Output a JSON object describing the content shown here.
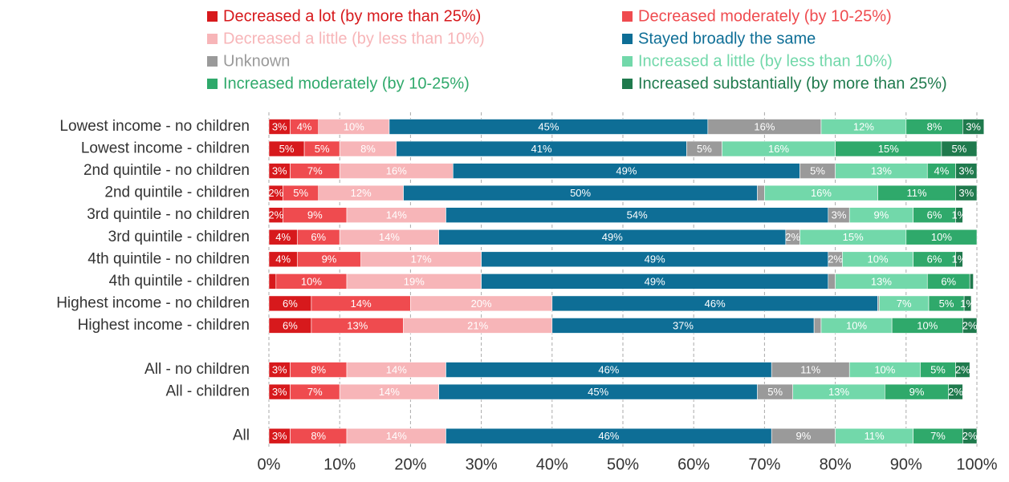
{
  "chart_data": {
    "type": "stacked-bar-horizontal",
    "categories": [
      "Lowest income - no children",
      "Lowest income - children",
      "2nd quintile - no children",
      "2nd quintile - children",
      "3rd quintile - no children",
      "3rd quintile - children",
      "4th quintile - no children",
      "4th quintile - children",
      "Highest income - no children",
      "Highest income - children",
      null,
      "All - no children",
      "All - children",
      null,
      "All"
    ],
    "series": [
      {
        "name": "Decreased a lot (by more than 25%)",
        "color": "#d7191c",
        "values": [
          3,
          5,
          3,
          2,
          2,
          4,
          4,
          1,
          6,
          6,
          null,
          3,
          3,
          null,
          3
        ],
        "value_labels": [
          "3%",
          "5%",
          "3%",
          "2%",
          "2%",
          "4%",
          "4%",
          null,
          "6%",
          "6%",
          null,
          "3%",
          "3%",
          null,
          "3%"
        ]
      },
      {
        "name": "Decreased moderately (by 10-25%)",
        "color": "#ef4b4f",
        "values": [
          4,
          5,
          7,
          5,
          9,
          6,
          9,
          10,
          14,
          13,
          null,
          8,
          7,
          null,
          8
        ],
        "value_labels": [
          "4%",
          "5%",
          "7%",
          "5%",
          "9%",
          "6%",
          "9%",
          "10%",
          "14%",
          "13%",
          null,
          "8%",
          "7%",
          null,
          "8%"
        ]
      },
      {
        "name": "Decreased a little (by less than 10%)",
        "color": "#f7b5b8",
        "values": [
          10,
          8,
          16,
          12,
          14,
          14,
          17,
          19,
          20,
          21,
          null,
          14,
          14,
          null,
          14
        ],
        "value_labels": [
          "10%",
          "8%",
          "16%",
          "12%",
          "14%",
          "14%",
          "17%",
          "19%",
          "20%",
          "21%",
          null,
          "14%",
          "14%",
          null,
          "14%"
        ]
      },
      {
        "name": "Stayed broadly the same",
        "color": "#0e6e96",
        "values": [
          45,
          41,
          49,
          50,
          54,
          49,
          49,
          49,
          46,
          37,
          null,
          46,
          45,
          null,
          46
        ],
        "value_labels": [
          "45%",
          "41%",
          "49%",
          "50%",
          "54%",
          "49%",
          "49%",
          "49%",
          "46%",
          "37%",
          null,
          "46%",
          "45%",
          null,
          "46%"
        ]
      },
      {
        "name": "Unknown",
        "color": "#9a9a9a",
        "values": [
          16,
          5,
          5,
          1,
          3,
          2,
          2,
          1,
          0.2,
          1,
          null,
          11,
          5,
          null,
          9
        ],
        "value_labels": [
          "16%",
          "5%",
          "5%",
          null,
          "3%",
          "2%",
          "2%",
          null,
          null,
          null,
          null,
          "11%",
          "5%",
          null,
          "9%"
        ]
      },
      {
        "name": "Increased a little (by less than 10%)",
        "color": "#72d8aa",
        "values": [
          12,
          16,
          13,
          16,
          9,
          15,
          10,
          13,
          7,
          10,
          null,
          10,
          13,
          null,
          11
        ],
        "value_labels": [
          "12%",
          "16%",
          "13%",
          "16%",
          "9%",
          "15%",
          "10%",
          "13%",
          "7%",
          "10%",
          null,
          "10%",
          "13%",
          null,
          "11%"
        ]
      },
      {
        "name": "Increased moderately (by 10-25%)",
        "color": "#2fa96b",
        "values": [
          8,
          15,
          4,
          11,
          6,
          10,
          6,
          6,
          5,
          10,
          null,
          5,
          9,
          null,
          7
        ],
        "value_labels": [
          "8%",
          "15%",
          "4%",
          "11%",
          "6%",
          "10%",
          "6%",
          "6%",
          "5%",
          "10%",
          null,
          "5%",
          "9%",
          null,
          "7%"
        ]
      },
      {
        "name": "Increased substantially (by more than 25%)",
        "color": "#1f7a4d",
        "values": [
          3,
          5,
          3,
          3,
          1,
          0,
          1,
          0.5,
          1,
          2,
          null,
          2,
          2,
          null,
          2
        ],
        "value_labels": [
          "3%",
          "5%",
          "3%",
          "3%",
          "1%",
          null,
          "1%",
          null,
          "1%",
          "2%",
          null,
          "2%",
          "2%",
          null,
          "2%"
        ]
      }
    ],
    "xlim": [
      0,
      100
    ],
    "xticks": [
      {
        "value": 0,
        "label": "0%"
      },
      {
        "value": 10,
        "label": "10%"
      },
      {
        "value": 20,
        "label": "20%"
      },
      {
        "value": 30,
        "label": "30%"
      },
      {
        "value": 40,
        "label": "40%"
      },
      {
        "value": 50,
        "label": "50%"
      },
      {
        "value": 60,
        "label": "60%"
      },
      {
        "value": 70,
        "label": "70%"
      },
      {
        "value": 80,
        "label": "80%"
      },
      {
        "value": 90,
        "label": "90%"
      },
      {
        "value": 100,
        "label": "100%"
      }
    ],
    "grid": true
  }
}
